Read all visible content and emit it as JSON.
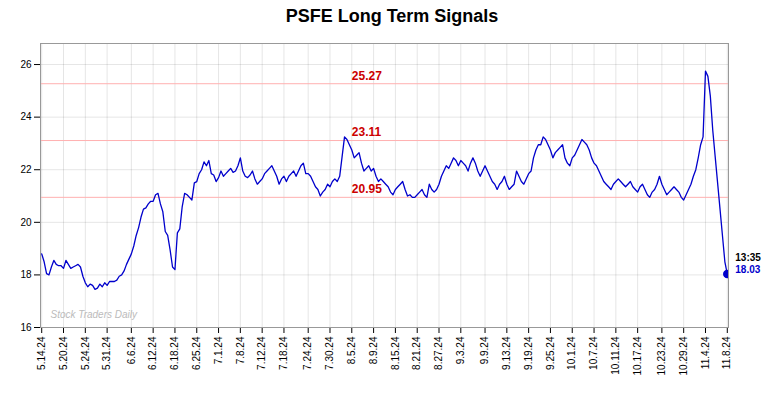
{
  "chart_data": {
    "type": "line",
    "title": "PSFE Long Term Signals",
    "categories": [
      "5.14.24",
      null,
      null,
      null,
      null,
      null,
      null,
      null,
      null,
      "5.20.24",
      null,
      null,
      null,
      null,
      null,
      null,
      null,
      null,
      "5.24.24",
      null,
      null,
      null,
      null,
      null,
      null,
      null,
      null,
      "5.31.24",
      null,
      null,
      null,
      null,
      null,
      null,
      null,
      null,
      null,
      "6.6.24",
      null,
      null,
      null,
      null,
      null,
      null,
      null,
      null,
      "6.12.24",
      null,
      null,
      null,
      null,
      null,
      null,
      null,
      null,
      "6.18.24",
      null,
      null,
      null,
      null,
      null,
      null,
      null,
      null,
      "6.25.24",
      null,
      null,
      null,
      null,
      null,
      null,
      null,
      null,
      "7.1.24",
      null,
      null,
      null,
      null,
      null,
      null,
      null,
      null,
      "7.8.24",
      null,
      null,
      null,
      null,
      null,
      null,
      null,
      null,
      "7.12.24",
      null,
      null,
      null,
      null,
      null,
      null,
      null,
      null,
      "7.18.24",
      null,
      null,
      null,
      null,
      null,
      null,
      null,
      null,
      null,
      "7.24.24",
      null,
      null,
      null,
      null,
      null,
      null,
      null,
      null,
      "7.30.24",
      null,
      null,
      null,
      null,
      null,
      null,
      null,
      null,
      "8.5.24",
      null,
      null,
      null,
      null,
      null,
      null,
      null,
      null,
      "8.9.24",
      null,
      null,
      null,
      null,
      null,
      null,
      null,
      null,
      "8.15.24",
      null,
      null,
      null,
      null,
      null,
      null,
      null,
      null,
      "8.21.24",
      null,
      null,
      null,
      null,
      null,
      null,
      null,
      null,
      "8.27.24",
      null,
      null,
      null,
      null,
      null,
      null,
      null,
      null,
      "9.3.24",
      null,
      null,
      null,
      null,
      null,
      null,
      null,
      null,
      null,
      "9.9.24",
      null,
      null,
      null,
      null,
      null,
      null,
      null,
      null,
      "9.13.24",
      null,
      null,
      null,
      null,
      null,
      null,
      null,
      null,
      "9.19.24",
      null,
      null,
      null,
      null,
      null,
      null,
      null,
      null,
      "9.25.24",
      null,
      null,
      null,
      null,
      null,
      null,
      null,
      null,
      "10.1.24",
      null,
      null,
      null,
      null,
      null,
      null,
      null,
      null,
      "10.7.24",
      null,
      null,
      null,
      null,
      null,
      null,
      null,
      null,
      "10.11.24",
      null,
      null,
      null,
      null,
      null,
      null,
      null,
      null,
      "10.17.24",
      null,
      null,
      null,
      null,
      null,
      null,
      null,
      null,
      null,
      "10.23.24",
      null,
      null,
      null,
      null,
      null,
      null,
      null,
      null,
      "10.29.24",
      null,
      null,
      null,
      null,
      null,
      null,
      null,
      null,
      "11.4.24",
      null,
      null,
      null,
      null,
      null,
      null,
      null,
      null,
      "11.8.24"
    ],
    "values": [
      18.8,
      18.5,
      18.05,
      18.0,
      18.3,
      18.55,
      18.4,
      18.35,
      18.35,
      18.25,
      18.55,
      18.4,
      18.25,
      18.3,
      18.35,
      18.4,
      18.3,
      17.95,
      17.7,
      17.55,
      17.65,
      17.6,
      17.45,
      17.5,
      17.65,
      17.55,
      17.7,
      17.6,
      17.75,
      17.75,
      17.75,
      17.8,
      17.95,
      18.0,
      18.15,
      18.4,
      18.6,
      18.8,
      19.1,
      19.5,
      19.8,
      20.2,
      20.5,
      20.55,
      20.7,
      20.8,
      20.8,
      21.05,
      21.1,
      20.7,
      20.4,
      19.65,
      19.5,
      18.95,
      18.3,
      18.2,
      19.6,
      19.75,
      20.6,
      21.1,
      21.05,
      20.95,
      20.85,
      21.5,
      21.55,
      21.85,
      22.0,
      22.3,
      22.15,
      22.35,
      21.85,
      21.8,
      21.55,
      21.7,
      21.95,
      21.75,
      21.85,
      21.95,
      22.05,
      21.9,
      21.95,
      22.15,
      22.45,
      21.95,
      21.75,
      21.7,
      21.8,
      21.95,
      21.65,
      21.45,
      21.55,
      21.65,
      21.85,
      21.95,
      22.05,
      22.15,
      21.95,
      21.75,
      21.45,
      21.65,
      21.75,
      21.55,
      21.75,
      21.85,
      21.95,
      21.75,
      21.95,
      22.15,
      22.25,
      21.85,
      21.85,
      21.75,
      21.55,
      21.35,
      21.25,
      21.0,
      21.15,
      21.25,
      21.45,
      21.35,
      21.55,
      21.65,
      21.55,
      21.75,
      22.5,
      23.25,
      23.15,
      22.95,
      22.75,
      22.45,
      22.55,
      22.65,
      22.25,
      21.95,
      22.05,
      22.15,
      21.95,
      22.05,
      21.75,
      21.55,
      21.65,
      21.55,
      21.45,
      21.35,
      21.15,
      21.05,
      21.25,
      21.35,
      21.45,
      21.55,
      21.25,
      21.0,
      21.05,
      20.95,
      20.95,
      21.05,
      21.15,
      21.25,
      21.05,
      20.95,
      21.45,
      21.25,
      21.15,
      21.25,
      21.45,
      21.75,
      21.95,
      22.15,
      22.05,
      22.25,
      22.45,
      22.35,
      22.15,
      22.35,
      22.25,
      22.15,
      21.95,
      22.25,
      22.45,
      22.25,
      21.95,
      21.75,
      21.95,
      22.15,
      21.95,
      21.75,
      21.55,
      21.45,
      21.25,
      21.45,
      21.55,
      21.75,
      21.45,
      21.25,
      21.35,
      21.45,
      21.95,
      21.75,
      21.55,
      21.45,
      21.65,
      21.85,
      21.95,
      22.45,
      22.75,
      22.95,
      22.95,
      23.25,
      23.15,
      22.95,
      22.75,
      22.45,
      22.65,
      22.75,
      22.85,
      22.95,
      22.45,
      22.25,
      22.15,
      22.45,
      22.55,
      22.75,
      22.95,
      23.15,
      23.05,
      22.95,
      22.75,
      22.45,
      22.25,
      22.15,
      21.95,
      21.75,
      21.55,
      21.45,
      21.35,
      21.25,
      21.45,
      21.55,
      21.65,
      21.55,
      21.45,
      21.35,
      21.45,
      21.55,
      21.35,
      21.25,
      21.15,
      21.35,
      21.45,
      21.25,
      21.05,
      20.95,
      21.15,
      21.25,
      21.45,
      21.75,
      21.45,
      21.25,
      21.05,
      21.15,
      21.25,
      21.35,
      21.25,
      21.15,
      20.95,
      20.85,
      21.05,
      21.25,
      21.45,
      21.75,
      22.0,
      22.45,
      22.95,
      23.25,
      25.75,
      25.55,
      24.8,
      23.5,
      22.5,
      21.5,
      20.5,
      19.5,
      18.5,
      18.03
    ],
    "color": "#0000cc",
    "ylim": [
      16,
      26.8
    ],
    "yticks": [
      16,
      18,
      20,
      22,
      24,
      26
    ],
    "grid": true,
    "hlines": [
      {
        "value": 25.27,
        "label": "25.27",
        "color": "#ffb0b0",
        "label_color": "#cc0000"
      },
      {
        "value": 23.11,
        "label": "23.11",
        "color": "#ffb0b0",
        "label_color": "#cc0000"
      },
      {
        "value": 20.95,
        "label": "20.95",
        "color": "#ffb0b0",
        "label_color": "#cc0000"
      }
    ],
    "watermark": {
      "text": "Stock Traders Daily",
      "color": "#bbbbbb"
    },
    "last_point_labels": [
      {
        "text": "13:35",
        "color": "#000000"
      },
      {
        "text": "18.03",
        "color": "#0000cc"
      }
    ]
  }
}
